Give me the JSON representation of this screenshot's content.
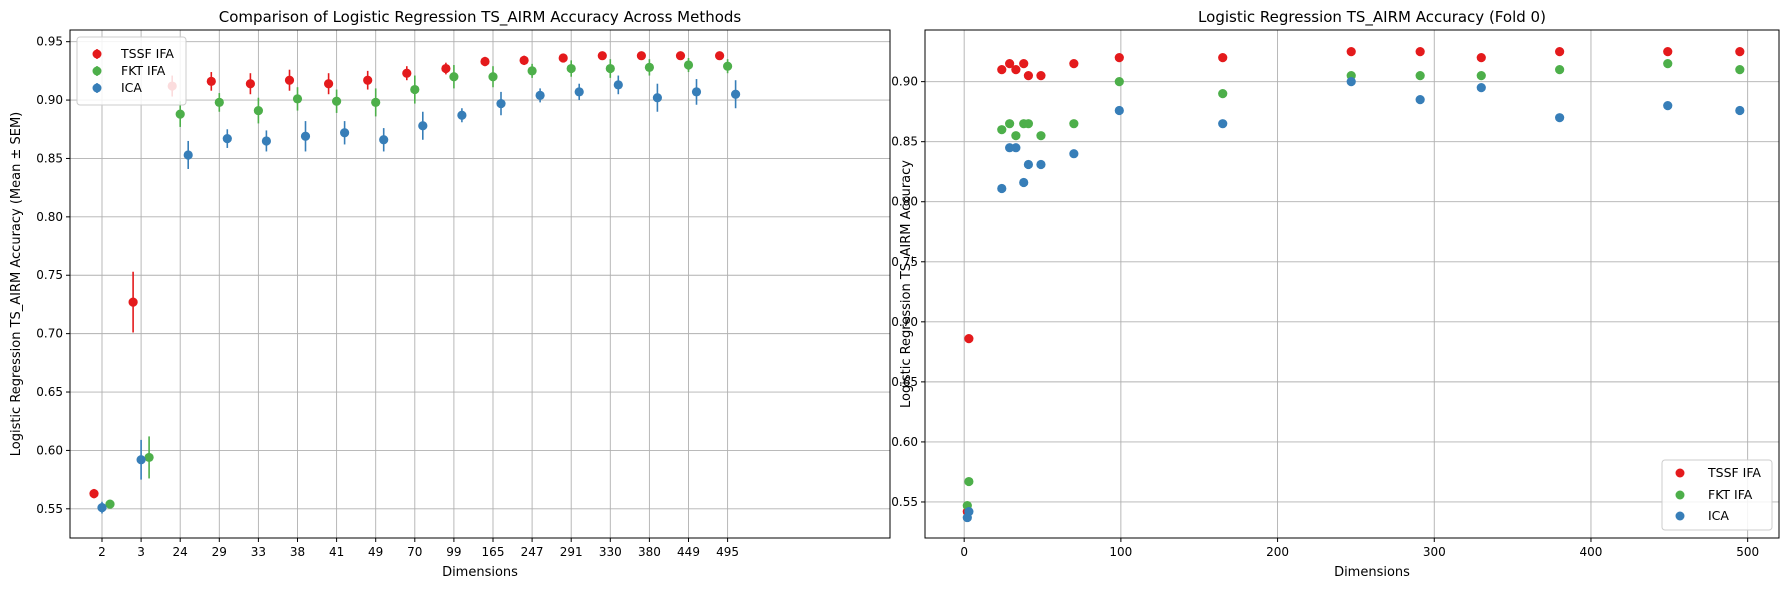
{
  "colors": {
    "tssf": "#e41a1c",
    "fkt": "#4daf4a",
    "ica": "#377eb8"
  },
  "chart_data": [
    {
      "type": "scatter",
      "title": "Comparison of Logistic Regression TS_AIRM Accuracy Across Methods",
      "xlabel": "Dimensions",
      "ylabel": "Logistic Regression TS_AIRM Accuracy (Mean ± SEM)",
      "categories": [
        "2",
        "3",
        "24",
        "29",
        "33",
        "38",
        "41",
        "49",
        "70",
        "99",
        "165",
        "247",
        "291",
        "330",
        "380",
        "449",
        "495"
      ],
      "ylim": [
        0.525,
        0.96
      ],
      "yticks": [
        "0.55",
        "0.60",
        "0.65",
        "0.70",
        "0.75",
        "0.80",
        "0.85",
        "0.90",
        "0.95"
      ],
      "grid": true,
      "legend_position": "upper-left",
      "series": [
        {
          "name": "TSSF IFA",
          "color": "#e41a1c",
          "values": [
            0.563,
            0.727,
            0.912,
            0.916,
            0.914,
            0.917,
            0.914,
            0.917,
            0.923,
            0.927,
            0.933,
            0.934,
            0.936,
            0.938,
            0.938,
            0.938,
            0.938
          ],
          "errors": [
            0.004,
            0.026,
            0.009,
            0.008,
            0.009,
            0.009,
            0.009,
            0.008,
            0.006,
            0.005,
            0.004,
            0.004,
            0.003,
            0.003,
            0.003,
            0.003,
            0.003
          ]
        },
        {
          "name": "FKT IFA",
          "color": "#4daf4a",
          "values": [
            0.554,
            0.594,
            0.888,
            0.898,
            0.891,
            0.901,
            0.899,
            0.898,
            0.909,
            0.92,
            0.92,
            0.925,
            0.927,
            0.927,
            0.928,
            0.93,
            0.929
          ],
          "errors": [
            0.003,
            0.018,
            0.011,
            0.008,
            0.011,
            0.01,
            0.01,
            0.012,
            0.012,
            0.01,
            0.009,
            0.006,
            0.007,
            0.008,
            0.007,
            0.006,
            0.006
          ]
        },
        {
          "name": "ICA",
          "color": "#377eb8",
          "values": [
            0.551,
            0.592,
            0.853,
            0.867,
            0.865,
            0.869,
            0.872,
            0.866,
            0.878,
            0.887,
            0.897,
            0.904,
            0.907,
            0.913,
            0.902,
            0.907,
            0.905
          ],
          "errors": [
            0.005,
            0.017,
            0.012,
            0.008,
            0.009,
            0.013,
            0.01,
            0.01,
            0.012,
            0.006,
            0.01,
            0.006,
            0.007,
            0.008,
            0.012,
            0.011,
            0.012
          ]
        }
      ]
    },
    {
      "type": "scatter",
      "title": "Logistic Regression TS_AIRM Accuracy (Fold 0)",
      "xlabel": "Dimensions",
      "ylabel": "Logistic Regression TS_AIRM Accuracy",
      "xlim": [
        -25,
        520
      ],
      "ylim": [
        0.52,
        0.943
      ],
      "xticks": [
        "0",
        "100",
        "200",
        "300",
        "400",
        "500"
      ],
      "yticks": [
        "0.55",
        "0.60",
        "0.65",
        "0.70",
        "0.75",
        "0.80",
        "0.85",
        "0.90"
      ],
      "grid": true,
      "legend_position": "lower-right",
      "x": [
        2,
        3,
        24,
        29,
        33,
        38,
        41,
        49,
        70,
        99,
        165,
        247,
        291,
        330,
        380,
        449,
        495
      ],
      "series": [
        {
          "name": "TSSF IFA",
          "color": "#e41a1c",
          "values": [
            0.542,
            0.686,
            0.91,
            0.915,
            0.91,
            0.915,
            0.905,
            0.905,
            0.915,
            0.92,
            0.92,
            0.925,
            0.925,
            0.92,
            0.925,
            0.925,
            0.925
          ]
        },
        {
          "name": "FKT IFA",
          "color": "#4daf4a",
          "values": [
            0.547,
            0.567,
            0.86,
            0.865,
            0.855,
            0.865,
            0.865,
            0.855,
            0.865,
            0.9,
            0.89,
            0.905,
            0.905,
            0.905,
            0.91,
            0.915,
            0.91
          ]
        },
        {
          "name": "ICA",
          "color": "#377eb8",
          "values": [
            0.537,
            0.542,
            0.811,
            0.845,
            0.845,
            0.816,
            0.831,
            0.831,
            0.84,
            0.876,
            0.865,
            0.9,
            0.885,
            0.895,
            0.87,
            0.88,
            0.876
          ]
        }
      ]
    }
  ]
}
